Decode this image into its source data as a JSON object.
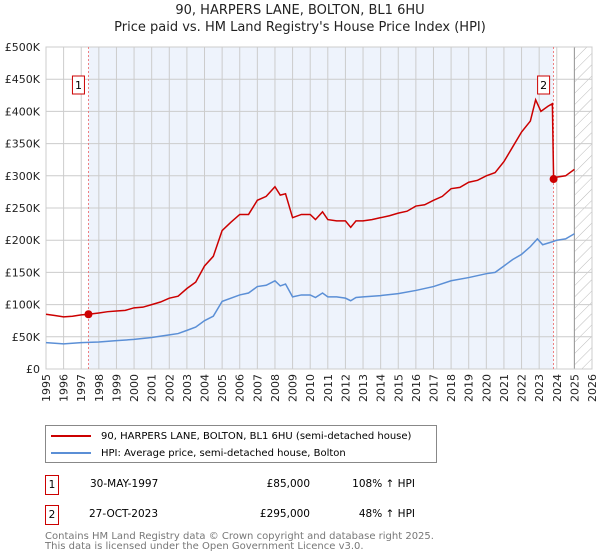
{
  "title": "90, HARPERS LANE, BOLTON, BL1 6HU",
  "subtitle": "Price paid vs. HM Land Registry's House Price Index (HPI)",
  "chart_data": {
    "type": "line",
    "title": "90, HARPERS LANE, BOLTON, BL1 6HU",
    "subtitle": "Price paid vs. HM Land Registry's House Price Index (HPI)",
    "xlim": [
      1995,
      2026
    ],
    "ylim": [
      0,
      500000
    ],
    "x_ticks": [
      "1995",
      "1996",
      "1997",
      "1998",
      "1999",
      "2000",
      "2001",
      "2002",
      "2003",
      "2004",
      "2005",
      "2006",
      "2007",
      "2008",
      "2009",
      "2010",
      "2011",
      "2012",
      "2013",
      "2014",
      "2015",
      "2016",
      "2017",
      "2018",
      "2019",
      "2020",
      "2021",
      "2022",
      "2023",
      "2024",
      "2025",
      "2026"
    ],
    "y_ticks": [
      {
        "v": 0,
        "label": "£0"
      },
      {
        "v": 50000,
        "label": "£50K"
      },
      {
        "v": 100000,
        "label": "£100K"
      },
      {
        "v": 150000,
        "label": "£150K"
      },
      {
        "v": 200000,
        "label": "£200K"
      },
      {
        "v": 250000,
        "label": "£250K"
      },
      {
        "v": 300000,
        "label": "£300K"
      },
      {
        "v": 350000,
        "label": "£350K"
      },
      {
        "v": 400000,
        "label": "£400K"
      },
      {
        "v": 450000,
        "label": "£450K"
      },
      {
        "v": 500000,
        "label": "£500K"
      }
    ],
    "grid": true,
    "series": [
      {
        "name": "90, HARPERS LANE, BOLTON, BL1 6HU (semi-detached house)",
        "color": "#cc0000",
        "x": [
          1995,
          1995.5,
          1996,
          1996.5,
          1997,
          1997.41,
          1998,
          1998.5,
          1999,
          1999.5,
          2000,
          2000.5,
          2001,
          2001.5,
          2002,
          2002.5,
          2003,
          2003.5,
          2004,
          2004.5,
          2005,
          2005.5,
          2006,
          2006.5,
          2007,
          2007.5,
          2008,
          2008.3,
          2008.6,
          2009,
          2009.5,
          2010,
          2010.3,
          2010.7,
          2011,
          2011.5,
          2012,
          2012.3,
          2012.6,
          2013,
          2013.5,
          2014,
          2014.5,
          2015,
          2015.5,
          2016,
          2016.5,
          2017,
          2017.5,
          2018,
          2018.5,
          2019,
          2019.5,
          2020,
          2020.5,
          2021,
          2021.5,
          2022,
          2022.5,
          2022.8,
          2023.1,
          2023.5,
          2023.75,
          2023.82,
          2024,
          2024.5,
          2025
        ],
        "y": [
          85000,
          83000,
          81000,
          82000,
          84000,
          85000,
          87000,
          89000,
          90000,
          91000,
          95000,
          96000,
          100000,
          104000,
          110000,
          113000,
          125000,
          135000,
          160000,
          175000,
          215000,
          228000,
          240000,
          240000,
          262000,
          268000,
          283000,
          270000,
          272000,
          235000,
          240000,
          240000,
          232000,
          244000,
          232000,
          230000,
          230000,
          220000,
          230000,
          230000,
          232000,
          235000,
          238000,
          242000,
          245000,
          253000,
          255000,
          262000,
          268000,
          280000,
          282000,
          290000,
          293000,
          300000,
          305000,
          322000,
          345000,
          368000,
          385000,
          418000,
          400000,
          408000,
          412000,
          295000,
          298000,
          300000,
          310000
        ]
      },
      {
        "name": "HPI: Average price, semi-detached house, Bolton",
        "color": "#5b8fd6",
        "x": [
          1995,
          1996,
          1997,
          1998,
          1999,
          2000,
          2001,
          2002,
          2002.5,
          2003,
          2003.5,
          2004,
          2004.5,
          2005,
          2006,
          2006.5,
          2007,
          2007.5,
          2008,
          2008.3,
          2008.6,
          2009,
          2009.5,
          2010,
          2010.3,
          2010.7,
          2011,
          2011.5,
          2012,
          2012.3,
          2012.6,
          2013,
          2014,
          2015,
          2016,
          2017,
          2018,
          2019,
          2020,
          2020.5,
          2021,
          2021.5,
          2022,
          2022.5,
          2022.9,
          2023.2,
          2023.8,
          2024,
          2024.5,
          2025
        ],
        "y": [
          41000,
          39000,
          41000,
          42000,
          44000,
          46000,
          49000,
          53000,
          55000,
          60000,
          65000,
          75000,
          82000,
          105000,
          115000,
          118000,
          128000,
          130000,
          137000,
          129000,
          132000,
          112000,
          115000,
          115000,
          111000,
          118000,
          112000,
          112000,
          110000,
          106000,
          111000,
          112000,
          114000,
          117000,
          122000,
          128000,
          137000,
          142000,
          148000,
          150000,
          160000,
          170000,
          178000,
          190000,
          202000,
          193000,
          198000,
          200000,
          202000,
          210000
        ]
      }
    ],
    "sales": [
      {
        "id": "1",
        "x": 1997.41,
        "y": 85000,
        "date": "30-MAY-1997",
        "price": "£85,000",
        "hpi": "108% ↑ HPI"
      },
      {
        "id": "2",
        "x": 2023.82,
        "y": 295000,
        "date": "27-OCT-2023",
        "price": "£295,000",
        "hpi": "48% ↑ HPI"
      }
    ],
    "forecast_hatch_from": 2025,
    "legend_position": "below"
  },
  "footer": [
    "Contains HM Land Registry data © Crown copyright and database right 2025.",
    "This data is licensed under the Open Government Licence v3.0."
  ]
}
